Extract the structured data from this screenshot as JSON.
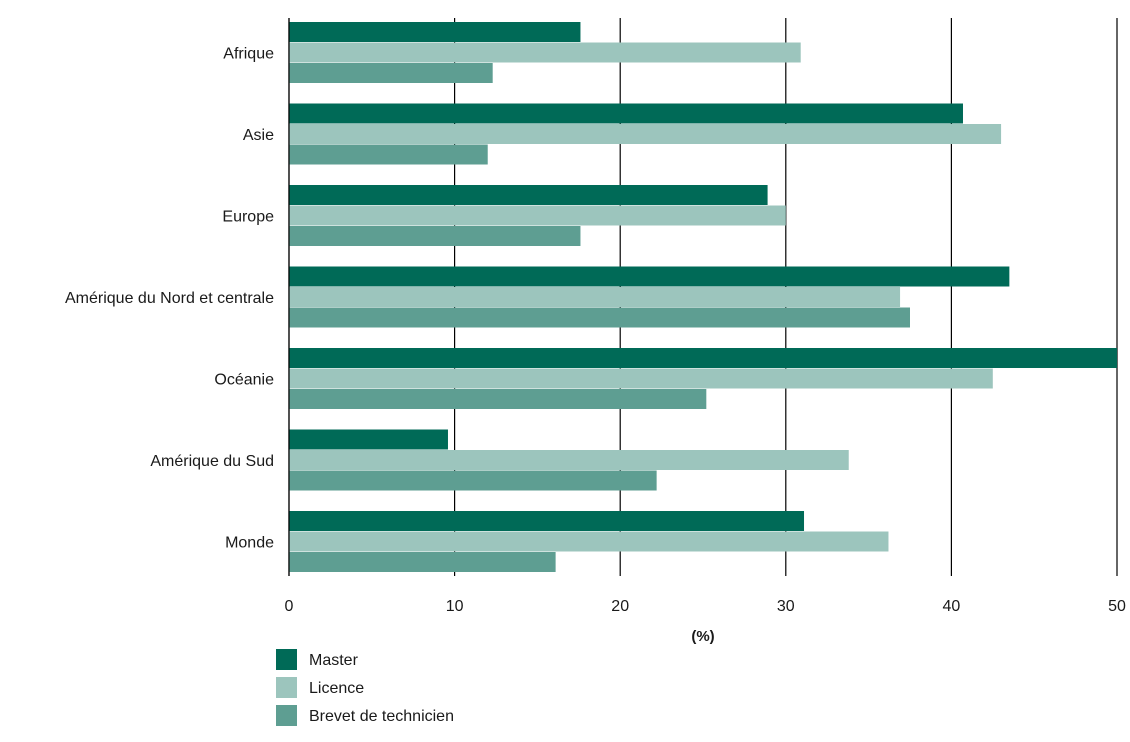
{
  "chart_data": {
    "type": "bar",
    "orientation": "horizontal",
    "categories": [
      "Afrique",
      "Asie",
      "Europe",
      "Amérique du Nord et centrale",
      "Océanie",
      "Amérique du Sud",
      "Monde"
    ],
    "series": [
      {
        "name": "Master",
        "color": "#006a57",
        "values": [
          17.6,
          40.7,
          28.9,
          43.5,
          50.0,
          9.6,
          31.1
        ]
      },
      {
        "name": "Licence",
        "color": "#9cc5bd",
        "values": [
          30.9,
          43.0,
          30.0,
          36.9,
          42.5,
          33.8,
          36.2
        ]
      },
      {
        "name": "Brevet de technicien",
        "color": "#5e9e92",
        "values": [
          12.3,
          12.0,
          17.6,
          37.5,
          25.2,
          22.2,
          16.1
        ]
      }
    ],
    "xlabel": "(%)",
    "ylabel": "",
    "xlim": [
      0,
      50
    ],
    "xticks": [
      0,
      10,
      20,
      30,
      40,
      50
    ],
    "grid": "vertical",
    "legend": "bottom-left"
  }
}
